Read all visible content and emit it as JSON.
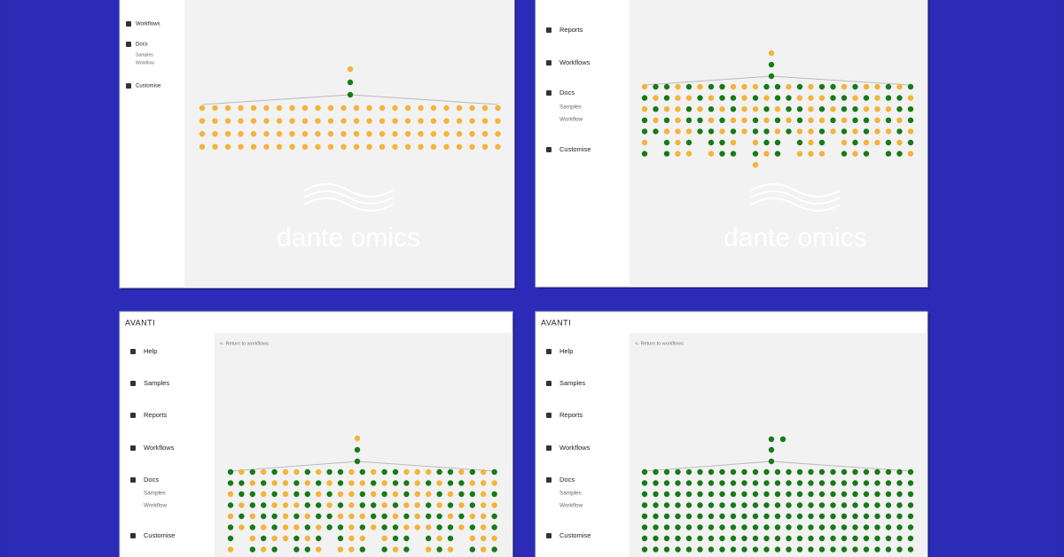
{
  "panels": [
    {
      "nav": [
        "Workflows",
        "Docs",
        "Samples",
        "Workflow",
        "Customise"
      ],
      "watermark": "dante omics"
    },
    {
      "nav": [
        "Reports",
        "Workflows",
        "Docs",
        "Samples",
        "Workflow",
        "Customise"
      ],
      "watermark": "dante omics"
    },
    {
      "logo": "AVANTI",
      "back": "<- Return to workflows",
      "nav": [
        "Help",
        "Samples",
        "Reports",
        "Workflows",
        "Docs",
        "Samples",
        "Workflow",
        "Customise"
      ]
    },
    {
      "logo": "AVANTI",
      "back": "<- Return to workflows",
      "nav": [
        "Help",
        "Samples",
        "Reports",
        "Workflows",
        "Docs",
        "Samples",
        "Workflow",
        "Customise"
      ]
    }
  ]
}
